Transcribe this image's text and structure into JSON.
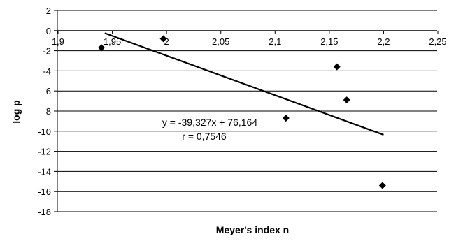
{
  "chart_data": {
    "type": "scatter",
    "xlabel": "Meyer's index n",
    "ylabel": "log p",
    "xlim": [
      1.9,
      2.25
    ],
    "ylim": [
      -18,
      2
    ],
    "x_ticks": [
      1.9,
      1.95,
      2.0,
      2.05,
      2.1,
      2.15,
      2.2,
      2.25
    ],
    "x_tick_labels": [
      "1,9",
      "1,95",
      "2",
      "2,05",
      "2,1",
      "2,15",
      "2,2",
      "2,25"
    ],
    "y_ticks": [
      2,
      0,
      -2,
      -4,
      -6,
      -8,
      -10,
      -12,
      -14,
      -16,
      -18
    ],
    "y_tick_labels": [
      "2",
      "0",
      "-2",
      "-4",
      "-6",
      "-8",
      "-10",
      "-12",
      "-14",
      "-16",
      "-18"
    ],
    "grid": {
      "horizontal": true,
      "vertical": false
    },
    "marker": "diamond",
    "points": [
      {
        "x": 1.94,
        "y": -1.7
      },
      {
        "x": 1.997,
        "y": -0.8
      },
      {
        "x": 2.11,
        "y": -8.7
      },
      {
        "x": 2.157,
        "y": -3.6
      },
      {
        "x": 2.166,
        "y": -6.9
      },
      {
        "x": 2.199,
        "y": -15.4
      }
    ],
    "trendline": {
      "slope": -39.327,
      "intercept": 76.164,
      "x_range": [
        1.943,
        2.2
      ]
    },
    "annotations": {
      "equation": "y = -39,327x + 76,164",
      "r": "r = 0,7546"
    }
  }
}
